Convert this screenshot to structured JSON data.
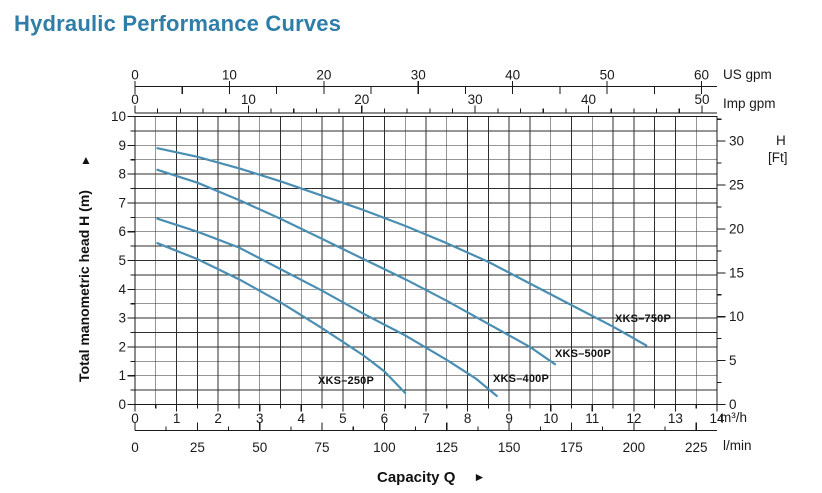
{
  "page": {
    "title": "Hydraulic Performance Curves"
  },
  "chart_data": {
    "type": "line",
    "title": "Hydraulic Performance Curves",
    "xlabel": "Capacity Q",
    "ylabel": "Total manometric head H (m)",
    "legend": "inline curve labels",
    "grid": {
      "on": true,
      "x_step_m3h": 0.5,
      "y_step_m": 0.5
    },
    "xlim_m3h": [
      0,
      14
    ],
    "ylim_m": [
      0,
      10
    ],
    "axes": {
      "x_m3h": {
        "unit": "m³/h",
        "min": 0,
        "max": 14,
        "label_step": 1,
        "minor_step": 0.5,
        "ticks": [
          0,
          1,
          2,
          3,
          4,
          5,
          6,
          7,
          8,
          9,
          10,
          11,
          12,
          13,
          14
        ]
      },
      "x_lmin": {
        "unit": "l/min",
        "min": 0,
        "max": 225,
        "label_step": 25,
        "minor_step": 12.5,
        "lmin_per_m3h": 16.6667,
        "ticks": [
          0,
          25,
          50,
          75,
          100,
          125,
          150,
          175,
          200,
          225
        ]
      },
      "x_usgpm": {
        "unit": "US gpm",
        "min": 0,
        "max": 60,
        "label_step": 10,
        "minor_step": 5,
        "usgpm_per_m3h": 4.4029,
        "ticks": [
          0,
          10,
          20,
          30,
          40,
          50,
          60
        ]
      },
      "x_impgpm": {
        "unit": "Imp gpm",
        "min": 0,
        "max": 50,
        "label_step": 10,
        "minor_step": 2,
        "impgpm_per_m3h": 3.6662,
        "ticks": [
          0,
          10,
          20,
          30,
          40,
          50
        ]
      },
      "y_m": {
        "unit": "m",
        "min": 0,
        "max": 10,
        "label_step": 1,
        "minor_step": 0.5,
        "ticks": [
          0,
          1,
          2,
          3,
          4,
          5,
          6,
          7,
          8,
          9,
          10
        ]
      },
      "y_ft": {
        "unit_lines": [
          "H",
          "[Ft]"
        ],
        "min": 0,
        "max": 30,
        "label_step": 5,
        "minor_step": 2.5,
        "ft_per_m": 3.2808,
        "ticks": [
          0,
          5,
          10,
          15,
          20,
          25,
          30
        ]
      }
    },
    "icons": {
      "up_arrow": "▲",
      "right_arrow": "►"
    },
    "colors": {
      "title": "#2e7ea8",
      "curve": "#4a8fb3",
      "grid": "#2e2e2e",
      "axis": "#1a1a1a"
    },
    "series": [
      {
        "name": "XKS–250P",
        "label_q": 4.4,
        "label_h": 0.78,
        "points_q_h": [
          [
            0.54,
            5.6
          ],
          [
            1.5,
            5.05
          ],
          [
            2.5,
            4.35
          ],
          [
            3.5,
            3.55
          ],
          [
            4.5,
            2.65
          ],
          [
            5.5,
            1.7
          ],
          [
            6.0,
            1.15
          ],
          [
            6.5,
            0.4
          ]
        ]
      },
      {
        "name": "XKS–400P",
        "label_q": 8.61,
        "label_h": 0.85,
        "points_q_h": [
          [
            0.54,
            6.45
          ],
          [
            1.5,
            6.0
          ],
          [
            2.5,
            5.45
          ],
          [
            3.5,
            4.7
          ],
          [
            4.5,
            3.95
          ],
          [
            5.5,
            3.15
          ],
          [
            6.5,
            2.4
          ],
          [
            7.5,
            1.55
          ],
          [
            8.2,
            0.9
          ],
          [
            8.7,
            0.3
          ]
        ]
      },
      {
        "name": "XKS–500P",
        "label_q": 10.1,
        "label_h": 1.72,
        "points_q_h": [
          [
            0.54,
            8.15
          ],
          [
            1.5,
            7.7
          ],
          [
            2.5,
            7.1
          ],
          [
            3.5,
            6.45
          ],
          [
            4.5,
            5.75
          ],
          [
            5.5,
            5.05
          ],
          [
            6.5,
            4.35
          ],
          [
            7.5,
            3.6
          ],
          [
            8.5,
            2.8
          ],
          [
            9.5,
            2.0
          ],
          [
            10.1,
            1.4
          ]
        ]
      },
      {
        "name": "XKS–750P",
        "label_q": 11.55,
        "label_h": 2.92,
        "points_q_h": [
          [
            0.54,
            8.9
          ],
          [
            1.5,
            8.6
          ],
          [
            2.5,
            8.2
          ],
          [
            3.5,
            7.75
          ],
          [
            4.5,
            7.25
          ],
          [
            5.5,
            6.75
          ],
          [
            6.5,
            6.2
          ],
          [
            7.5,
            5.6
          ],
          [
            8.5,
            4.95
          ],
          [
            9.5,
            4.2
          ],
          [
            10.5,
            3.45
          ],
          [
            11.5,
            2.7
          ],
          [
            12.3,
            2.05
          ]
        ]
      }
    ]
  }
}
